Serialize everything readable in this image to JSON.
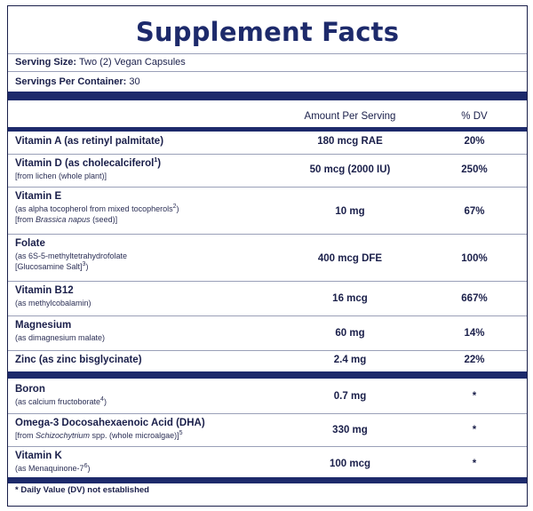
{
  "title": "Supplement Facts",
  "serving_size": {
    "label": "Serving Size:",
    "value": "Two (2) Vegan Capsules"
  },
  "servings_per_container": {
    "label": "Servings Per Container:",
    "value": "30"
  },
  "columns": {
    "amount": "Amount Per Serving",
    "dv": "% DV"
  },
  "nutrients": [
    {
      "name": "Vitamin A",
      "qualifier": "(as retinyl palmitate)",
      "sub1": "",
      "sub2": "",
      "amount": "180 mcg RAE",
      "dv": "20%"
    },
    {
      "name": "Vitamin D",
      "qualifier": "(as cholecalciferol",
      "sup": "1",
      "qualifier_end": ")",
      "sub1": "[from lichen (whole plant)]",
      "sub2": "",
      "amount": "50 mcg (2000 IU)",
      "dv": "250%"
    },
    {
      "name": "Vitamin E",
      "sub1": "(as alpha tocopherol from mixed tocopherols",
      "sub1_sup": "2",
      "sub1_end": ")",
      "sub2_pre": "[from ",
      "sub2_italic": "Brassica napus",
      "sub2_post": " (seed)]",
      "amount": "10 mg",
      "dv": "67%"
    },
    {
      "name": "Folate",
      "sub1": "(as 6S-5-methyltetrahydrofolate",
      "sub2": "[Glucosamine Salt]",
      "sub2_sup": "3",
      "sub2_end": ")",
      "amount": "400 mcg DFE",
      "dv": "100%"
    },
    {
      "name": "Vitamin B12",
      "sub1": "(as methylcobalamin)",
      "amount": "16 mcg",
      "dv": "667%"
    },
    {
      "name": "Magnesium",
      "sub1": "(as dimagnesium malate)",
      "amount": "60 mg",
      "dv": "14%"
    },
    {
      "name": "Zinc",
      "qualifier": "(as zinc bisglycinate)",
      "amount": "2.4 mg",
      "dv": "22%"
    },
    {
      "name": "Boron",
      "sub1": "(as calcium fructoborate",
      "sub1_sup": "4",
      "sub1_end": ")",
      "amount": "0.7 mg",
      "dv": "*"
    },
    {
      "name": "Omega-3 Docosahexaenoic Acid (DHA)",
      "sub1_pre": "[from ",
      "sub1_italic": "Schizochytrium",
      "sub1_post": " spp. (whole microalgae)]",
      "sub1_sup": "5",
      "amount": "330 mg",
      "dv": "*"
    },
    {
      "name": "Vitamin K",
      "sub1": "(as Menaquinone-7",
      "sub1_sup": "6",
      "sub1_end": ")",
      "amount": "100 mcg",
      "dv": "*"
    }
  ],
  "footnote": "* Daily Value (DV) not established"
}
